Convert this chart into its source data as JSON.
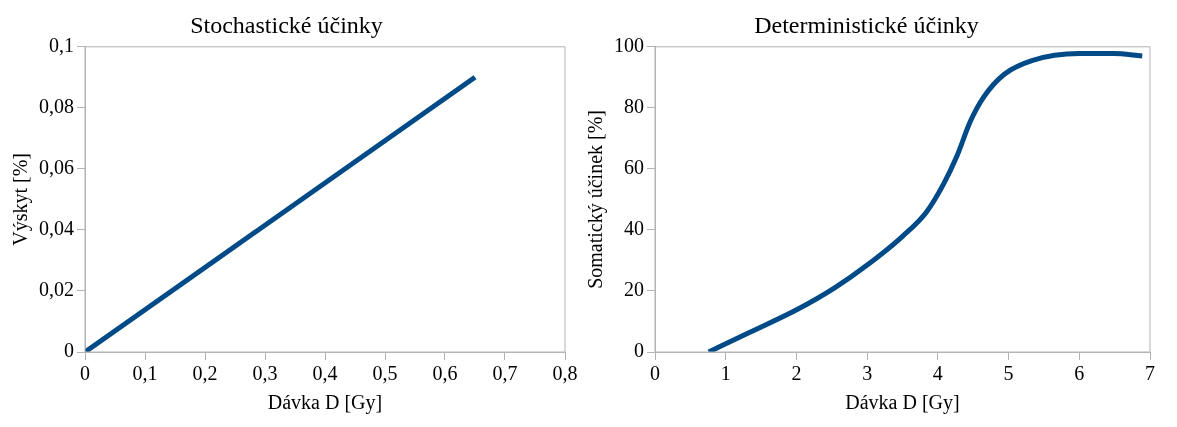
{
  "chart_data": [
    {
      "type": "line",
      "title": "Stochastické účinky",
      "xlabel": "Dávka D [Gy]",
      "ylabel": "Výskyt [%]",
      "xlim": [
        0,
        0.8
      ],
      "xticks": [
        0,
        {
          "value": 0.1,
          "label": "0,1"
        },
        {
          "value": 0.2,
          "label": "0,2"
        },
        {
          "value": 0.3,
          "label": "0,3"
        },
        {
          "value": 0.4,
          "label": "0,4"
        },
        {
          "value": 0.5,
          "label": "0,5"
        },
        {
          "value": 0.6,
          "label": "0,6"
        },
        {
          "value": 0.7,
          "label": "0,7"
        },
        {
          "value": 0.8,
          "label": "0,8"
        }
      ],
      "ylim": [
        0,
        0.1
      ],
      "yticks": [
        0,
        {
          "value": 0.02,
          "label": "0,02"
        },
        {
          "value": 0.04,
          "label": "0,04"
        },
        {
          "value": 0.06,
          "label": "0,06"
        },
        {
          "value": 0.08,
          "label": "0,08"
        },
        {
          "value": 0.1,
          "label": "0,1"
        }
      ],
      "marker": "none",
      "series": [
        {
          "color": "#004a87",
          "x": [
            0,
            0.65
          ],
          "values": [
            0,
            0.09
          ]
        }
      ]
    },
    {
      "type": "line",
      "title": "Deterministické účinky",
      "xlabel": "Dávka D [Gy]",
      "ylabel": "Somatický účinek [%]",
      "xlim": [
        0,
        7
      ],
      "xticks": [
        0,
        1,
        2,
        3,
        4,
        5,
        6,
        7
      ],
      "ylim": [
        0,
        100
      ],
      "yticks": [
        0,
        20,
        40,
        60,
        80,
        100
      ],
      "marker": "none",
      "series": [
        {
          "color": "#004a87",
          "x": [
            0.76,
            1.29,
            2.01,
            2.54,
            3.02,
            3.5,
            3.84,
            4.08,
            4.27,
            4.46,
            4.65,
            4.94,
            5.33,
            6.0,
            6.48,
            6.89
          ],
          "values": [
            0,
            5.9,
            13.9,
            21,
            28.8,
            37.9,
            45.9,
            55,
            64.2,
            75.6,
            83.6,
            91,
            95.5,
            97.8,
            97.8,
            97
          ]
        }
      ]
    }
  ]
}
